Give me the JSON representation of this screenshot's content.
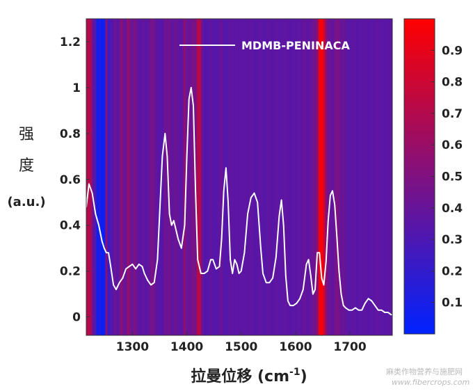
{
  "chart_data": {
    "type": "line",
    "background": "heatmap",
    "title": "",
    "xlabel": "拉曼位移 (cm",
    "xlabel_sup": "-1",
    "xlabel_close": ")",
    "ylabel_line1": "强",
    "ylabel_line2": "度",
    "ylabel_unit": "(a.u.)",
    "xlim": [
      1215,
      1778
    ],
    "ylim": [
      -0.08,
      1.3
    ],
    "x_ticks": [
      1300,
      1400,
      1500,
      1600,
      1700
    ],
    "y_ticks": [
      0,
      0.2,
      0.4,
      0.6,
      0.8,
      1,
      1.2
    ],
    "y_tick_labels": [
      "0",
      "0.2",
      "0.4",
      "0.6",
      "0.8",
      "1",
      "1.2"
    ],
    "legend": {
      "position": "top-right",
      "entries": [
        "MDMB-PENINACA"
      ]
    },
    "series": [
      {
        "name": "MDMB-PENINACA",
        "color": "#ffffff",
        "x": [
          1215,
          1220,
          1226,
          1232,
          1238,
          1244,
          1248,
          1252,
          1256,
          1260,
          1265,
          1270,
          1276,
          1282,
          1288,
          1294,
          1300,
          1306,
          1312,
          1318,
          1322,
          1328,
          1334,
          1340,
          1346,
          1350,
          1355,
          1360,
          1364,
          1368,
          1372,
          1376,
          1380,
          1384,
          1390,
          1396,
          1400,
          1404,
          1408,
          1412,
          1416,
          1420,
          1426,
          1432,
          1438,
          1444,
          1448,
          1454,
          1460,
          1464,
          1468,
          1472,
          1476,
          1480,
          1484,
          1488,
          1492,
          1496,
          1500,
          1506,
          1512,
          1518,
          1524,
          1530,
          1536,
          1540,
          1546,
          1552,
          1558,
          1564,
          1570,
          1574,
          1578,
          1582,
          1586,
          1590,
          1596,
          1602,
          1608,
          1614,
          1620,
          1624,
          1628,
          1632,
          1636,
          1640,
          1644,
          1648,
          1652,
          1656,
          1660,
          1664,
          1668,
          1672,
          1676,
          1680,
          1684,
          1688,
          1692,
          1698,
          1704,
          1710,
          1716,
          1722,
          1728,
          1734,
          1740,
          1746,
          1752,
          1758,
          1764,
          1770,
          1776
        ],
        "values": [
          0.48,
          0.58,
          0.54,
          0.45,
          0.4,
          0.33,
          0.3,
          0.28,
          0.28,
          0.22,
          0.14,
          0.12,
          0.15,
          0.17,
          0.21,
          0.22,
          0.23,
          0.21,
          0.23,
          0.22,
          0.19,
          0.16,
          0.14,
          0.15,
          0.25,
          0.45,
          0.7,
          0.8,
          0.7,
          0.45,
          0.4,
          0.42,
          0.38,
          0.34,
          0.3,
          0.4,
          0.7,
          0.95,
          1.0,
          0.92,
          0.55,
          0.25,
          0.19,
          0.19,
          0.2,
          0.25,
          0.25,
          0.21,
          0.22,
          0.34,
          0.55,
          0.65,
          0.5,
          0.25,
          0.19,
          0.25,
          0.23,
          0.19,
          0.2,
          0.28,
          0.45,
          0.52,
          0.54,
          0.5,
          0.3,
          0.19,
          0.15,
          0.15,
          0.17,
          0.26,
          0.44,
          0.51,
          0.4,
          0.18,
          0.07,
          0.05,
          0.05,
          0.06,
          0.08,
          0.12,
          0.23,
          0.25,
          0.18,
          0.1,
          0.12,
          0.28,
          0.28,
          0.17,
          0.14,
          0.24,
          0.42,
          0.53,
          0.55,
          0.49,
          0.35,
          0.2,
          0.1,
          0.05,
          0.04,
          0.03,
          0.03,
          0.04,
          0.03,
          0.03,
          0.06,
          0.08,
          0.07,
          0.05,
          0.03,
          0.03,
          0.02,
          0.02,
          0.01
        ]
      }
    ],
    "heatmap_bands": {
      "x": [
        1215,
        1218,
        1222,
        1226,
        1230,
        1234,
        1238,
        1242,
        1246,
        1250,
        1254,
        1258,
        1262,
        1266,
        1270,
        1274,
        1278,
        1282,
        1286,
        1290,
        1294,
        1298,
        1302,
        1306,
        1310,
        1314,
        1318,
        1322,
        1326,
        1330,
        1334,
        1338,
        1342,
        1346,
        1350,
        1354,
        1358,
        1362,
        1366,
        1370,
        1374,
        1378,
        1382,
        1386,
        1390,
        1394,
        1398,
        1402,
        1406,
        1410,
        1414,
        1418,
        1422,
        1426,
        1430,
        1434,
        1438,
        1442,
        1446,
        1450,
        1454,
        1458,
        1462,
        1466,
        1470,
        1474,
        1478,
        1482,
        1486,
        1490,
        1494,
        1498,
        1502,
        1506,
        1510,
        1514,
        1518,
        1522,
        1526,
        1530,
        1534,
        1538,
        1542,
        1546,
        1550,
        1554,
        1558,
        1562,
        1566,
        1570,
        1574,
        1578,
        1582,
        1586,
        1590,
        1594,
        1598,
        1602,
        1606,
        1610,
        1614,
        1618,
        1622,
        1626,
        1630,
        1634,
        1638,
        1642,
        1646,
        1650,
        1654,
        1658,
        1662,
        1666,
        1670,
        1674,
        1678,
        1682,
        1686,
        1690,
        1694,
        1698,
        1702,
        1706,
        1710,
        1714,
        1718,
        1722,
        1726,
        1730,
        1734,
        1738,
        1742,
        1746,
        1750,
        1754,
        1758,
        1762,
        1766,
        1770,
        1774
      ],
      "intensity": [
        0.68,
        0.72,
        0.62,
        0.38,
        0.3,
        0.05,
        0.12,
        0.02,
        0.03,
        0.55,
        0.22,
        0.3,
        0.35,
        0.42,
        0.35,
        0.42,
        0.55,
        0.42,
        0.4,
        0.6,
        0.48,
        0.4,
        0.5,
        0.4,
        0.38,
        0.35,
        0.4,
        0.35,
        0.38,
        0.4,
        0.5,
        0.42,
        0.38,
        0.35,
        0.33,
        0.35,
        0.45,
        0.4,
        0.45,
        0.38,
        0.4,
        0.42,
        0.4,
        0.35,
        0.4,
        0.55,
        0.42,
        0.4,
        0.44,
        0.48,
        0.45,
        0.7,
        0.72,
        0.45,
        0.35,
        0.33,
        0.35,
        0.38,
        0.35,
        0.32,
        0.35,
        0.38,
        0.4,
        0.35,
        0.33,
        0.35,
        0.38,
        0.36,
        0.35,
        0.37,
        0.35,
        0.36,
        0.36,
        0.37,
        0.35,
        0.38,
        0.36,
        0.35,
        0.34,
        0.37,
        0.36,
        0.35,
        0.34,
        0.36,
        0.38,
        0.35,
        0.35,
        0.38,
        0.36,
        0.35,
        0.37,
        0.36,
        0.38,
        0.35,
        0.34,
        0.36,
        0.35,
        0.37,
        0.36,
        0.38,
        0.4,
        0.38,
        0.37,
        0.4,
        0.42,
        0.45,
        0.55,
        0.95,
        0.99,
        0.85,
        0.55,
        0.45,
        0.4,
        0.38,
        0.42,
        0.5,
        0.45,
        0.4,
        0.42,
        0.38,
        0.36,
        0.35,
        0.36,
        0.37,
        0.35,
        0.34,
        0.36,
        0.35,
        0.37,
        0.35,
        0.34,
        0.36,
        0.35,
        0.37,
        0.38,
        0.35,
        0.36,
        0.35,
        0.34,
        0.36,
        0.35
      ]
    },
    "colorbar": {
      "min": 0.0,
      "max": 1.0,
      "ticks": [
        0.1,
        0.2,
        0.3,
        0.4,
        0.5,
        0.6,
        0.7,
        0.8,
        0.9
      ],
      "tick_labels": [
        "0.1",
        "0.2",
        "0.3",
        "0.4",
        "0.5",
        "0.6",
        "0.7",
        "0.8",
        "0.9"
      ],
      "color_low": "#0022ff",
      "color_high": "#ff0000"
    }
  },
  "watermark": {
    "line1": "麻类作物营养与施肥网",
    "line2": "www.fibercrops.com"
  }
}
